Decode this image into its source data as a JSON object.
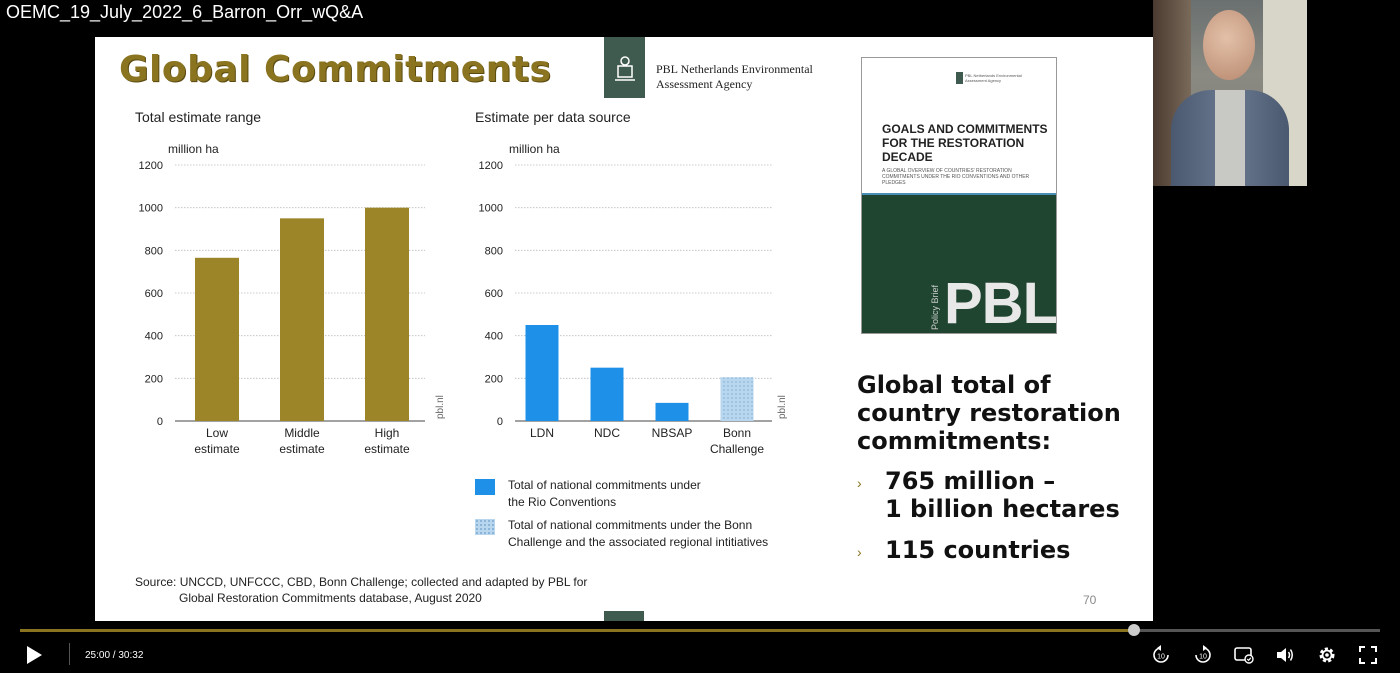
{
  "video": {
    "title": "OEMC_19_July_2022_6_Barron_Orr_wQ&A",
    "current_time": "25:00",
    "duration": "30:32",
    "time_display": "25:00 / 30:32",
    "progress": 0.819
  },
  "slide": {
    "title": "Global Commitments",
    "agency": [
      "PBL Netherlands Environmental",
      "Assessment Agency"
    ],
    "source_line1": "Source: UNCCD, UNFCCC, CBD, Bonn Challenge; collected and adapted by PBL for",
    "source_line2": "Global Restoration Commitments database, August 2020",
    "page_number": "70",
    "global_total": [
      "Global total of",
      "country restoration",
      "commitments:"
    ],
    "bullets": [
      {
        "lines": [
          "765 million –",
          "1 billion hectares"
        ]
      },
      {
        "lines": [
          "115 countries"
        ]
      }
    ],
    "legend": [
      {
        "lines": [
          "Total of national commitments under",
          "the Rio Conventions"
        ],
        "color": "#1e90e8",
        "pattern": "solid"
      },
      {
        "lines": [
          "Total of national commitments under the Bonn",
          "Challenge and the associated regional intitiatives"
        ],
        "color": "#a8cce8",
        "pattern": "dotted"
      }
    ],
    "book": {
      "agency": "PBL Netherlands Environmental Assessment Agency",
      "title": "GOALS AND COMMITMENTS FOR THE RESTORATION DECADE",
      "subtitle": "A GLOBAL OVERVIEW OF COUNTRIES' RESTORATION COMMITMENTS UNDER THE RIO CONVENTIONS AND OTHER PLEDGES",
      "pbl": "PBL",
      "policy": "Policy Brief"
    }
  },
  "colors": {
    "gold": "#9c8428",
    "blue": "#1e90e8",
    "light_blue": "#a8cce8",
    "accent": "#8a7420"
  },
  "icons": [
    "play-icon",
    "replay-10-icon",
    "forward-10-icon",
    "captions-icon",
    "volume-icon",
    "gear-icon",
    "fullscreen-icon"
  ],
  "chart_data": [
    {
      "type": "bar",
      "title": "Total estimate range",
      "ylabel": "million ha",
      "categories": [
        [
          "Low",
          "estimate"
        ],
        [
          "Middle",
          "estimate"
        ],
        [
          "High",
          "estimate"
        ]
      ],
      "values": [
        765,
        950,
        1000
      ],
      "colors": [
        "#9c8428",
        "#9c8428",
        "#9c8428"
      ],
      "patterns": [
        "solid",
        "solid",
        "solid"
      ],
      "ylim": [
        0,
        1200
      ],
      "yticks": [
        0,
        200,
        400,
        600,
        800,
        1000,
        1200
      ],
      "watermark": "pbl.nl",
      "grid": true
    },
    {
      "type": "bar",
      "title": "Estimate per data source",
      "ylabel": "million ha",
      "categories": [
        [
          "LDN"
        ],
        [
          "NDC"
        ],
        [
          "NBSAP"
        ],
        [
          "Bonn",
          "Challenge"
        ]
      ],
      "values": [
        450,
        250,
        85,
        205
      ],
      "colors": [
        "#1e90e8",
        "#1e90e8",
        "#1e90e8",
        "#a8cce8"
      ],
      "patterns": [
        "solid",
        "solid",
        "solid",
        "dotted"
      ],
      "ylim": [
        0,
        1200
      ],
      "yticks": [
        0,
        200,
        400,
        600,
        800,
        1000,
        1200
      ],
      "watermark": "pbl.nl",
      "grid": true
    }
  ]
}
